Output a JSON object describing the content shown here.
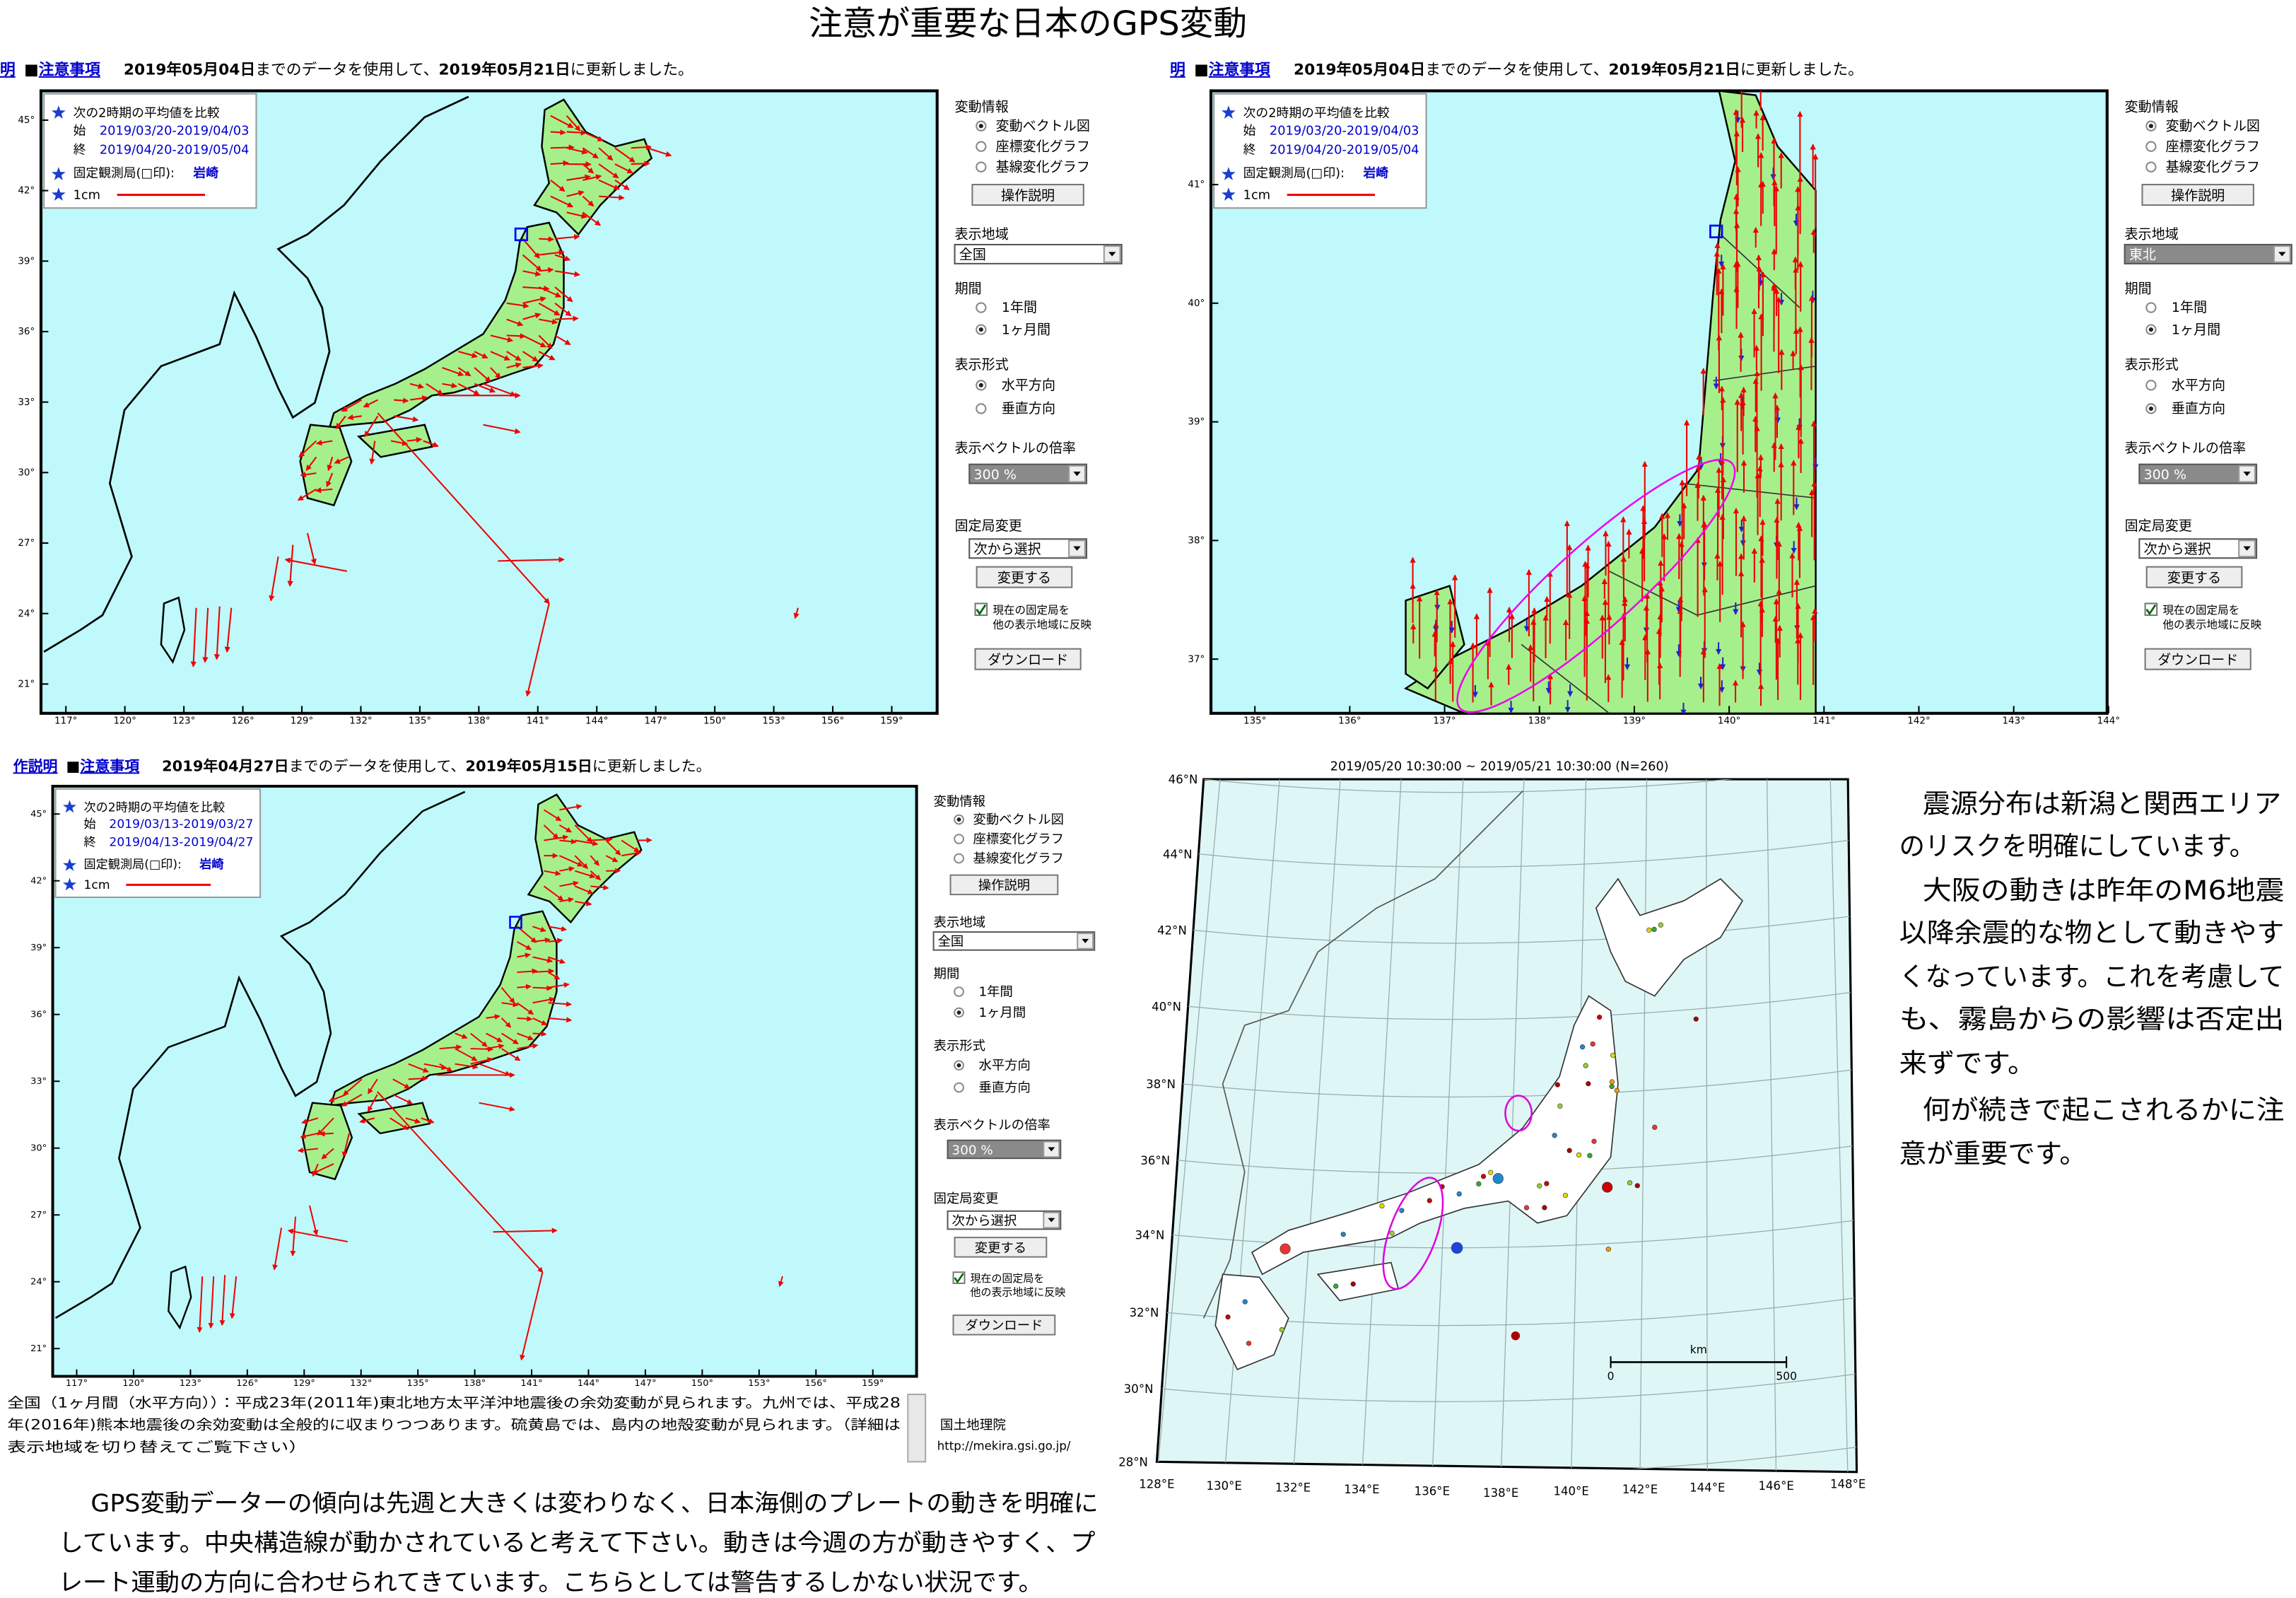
{
  "title": "注意が重要な日本のGPS変動",
  "panels": [
    {
      "header": {
        "nav": "明",
        "bullet": "■",
        "link": "注意事項",
        "data_date": "2019年05月04日",
        "middle": "までのデータを使用して、",
        "update_date": "2019年05月21日",
        "tail": "に更新しました。"
      },
      "legend": {
        "compare": "次の2時期の平均値を比較",
        "start_label": "始",
        "start": "2019/03/20-2019/04/03",
        "end_label": "終",
        "end": "2019/04/20-2019/05/04",
        "fixed": "固定観測局(□印):",
        "station": "岩崎",
        "scale": "1cm"
      },
      "lat_ticks": [
        "45°",
        "42°",
        "39°",
        "36°",
        "33°",
        "30°",
        "27°",
        "24°",
        "21°"
      ],
      "lon_ticks": [
        "117°",
        "120°",
        "123°",
        "126°",
        "129°",
        "132°",
        "135°",
        "138°",
        "141°",
        "144°",
        "147°",
        "150°",
        "153°",
        "156°",
        "159°"
      ],
      "controls": {
        "info_title": "変動情報",
        "info_options": [
          "変動ベクトル図",
          "座標変化グラフ",
          "基線変化グラフ"
        ],
        "info_selected": 0,
        "help_button": "操作説明",
        "region_title": "表示地域",
        "region": "全国",
        "period_title": "期間",
        "period_options": [
          "1年間",
          "1ヶ月間"
        ],
        "period_selected": 1,
        "format_title": "表示形式",
        "format_options": [
          "水平方向",
          "垂直方向"
        ],
        "format_selected": 0,
        "scale_title": "表示ベクトルの倍率",
        "scale": "300 %",
        "station_title": "固定局変更",
        "station_select": "次から選択",
        "change_button": "変更する",
        "reflect": [
          "現在の固定局を",
          "他の表示地域に反映"
        ],
        "download_button": "ダウンロード"
      }
    },
    {
      "header": {
        "nav": "明",
        "bullet": "■",
        "link": "注意事項",
        "data_date": "2019年05月04日",
        "middle": "までのデータを使用して、",
        "update_date": "2019年05月21日",
        "tail": "に更新しました。"
      },
      "legend": {
        "compare": "次の2時期の平均値を比較",
        "start_label": "始",
        "start": "2019/03/20-2019/04/03",
        "end_label": "終",
        "end": "2019/04/20-2019/05/04",
        "fixed": "固定観測局(□印):",
        "station": "岩崎",
        "scale": "1cm"
      },
      "lat_ticks": [
        "41°",
        "40°",
        "39°",
        "38°",
        "37°"
      ],
      "lon_ticks": [
        "135°",
        "136°",
        "137°",
        "138°",
        "139°",
        "140°",
        "141°",
        "142°",
        "143°",
        "144°"
      ],
      "controls": {
        "info_title": "変動情報",
        "info_options": [
          "変動ベクトル図",
          "座標変化グラフ",
          "基線変化グラフ"
        ],
        "info_selected": 0,
        "help_button": "操作説明",
        "region_title": "表示地域",
        "region": "東北",
        "period_title": "期間",
        "period_options": [
          "1年間",
          "1ヶ月間"
        ],
        "period_selected": 1,
        "format_title": "表示形式",
        "format_options": [
          "水平方向",
          "垂直方向"
        ],
        "format_selected": 1,
        "scale_title": "表示ベクトルの倍率",
        "scale": "300 %",
        "station_title": "固定局変更",
        "station_select": "次から選択",
        "change_button": "変更する",
        "reflect": [
          "現在の固定局を",
          "他の表示地域に反映"
        ],
        "download_button": "ダウンロード"
      }
    },
    {
      "header": {
        "nav": "作説明",
        "bullet": "■",
        "link": "注意事項",
        "data_date": "2019年04月27日",
        "middle": "までのデータを使用して、",
        "update_date": "2019年05月15日",
        "tail": "に更新しました。"
      },
      "legend": {
        "compare": "次の2時期の平均値を比較",
        "start_label": "始",
        "start": "2019/03/13-2019/03/27",
        "end_label": "終",
        "end": "2019/04/13-2019/04/27",
        "fixed": "固定観測局(□印):",
        "station": "岩崎",
        "scale": "1cm"
      },
      "lat_ticks": [
        "45°",
        "42°",
        "39°",
        "36°",
        "33°",
        "30°",
        "27°",
        "24°",
        "21°"
      ],
      "lon_ticks": [
        "117°",
        "120°",
        "123°",
        "126°",
        "129°",
        "132°",
        "135°",
        "138°",
        "141°",
        "144°",
        "147°",
        "150°",
        "153°",
        "156°",
        "159°"
      ],
      "controls": {
        "info_title": "変動情報",
        "info_options": [
          "変動ベクトル図",
          "座標変化グラフ",
          "基線変化グラフ"
        ],
        "info_selected": 0,
        "help_button": "操作説明",
        "region_title": "表示地域",
        "region": "全国",
        "period_title": "期間",
        "period_options": [
          "1年間",
          "1ヶ月間"
        ],
        "period_selected": 1,
        "format_title": "表示形式",
        "format_options": [
          "水平方向",
          "垂直方向"
        ],
        "format_selected": 0,
        "scale_title": "表示ベクトルの倍率",
        "scale": "300 %",
        "station_title": "固定局変更",
        "station_select": "次から選択",
        "change_button": "変更する",
        "reflect": [
          "現在の固定局を",
          "他の表示地域に反映"
        ],
        "download_button": "ダウンロード"
      }
    }
  ],
  "panel3_footer": {
    "lines": [
      "全国（1ヶ月間（水平方向））：平成23年(2011年)東北地方太平洋沖地震後の余効変動が見られます。九州では、平成28",
      "年(2016年)熊本地震後の余効変動は全般的に収まりつつあります。硫黄島では、島内の地殻変動が見られます。（詳細は",
      "表示地域を切り替えてご覧下さい）"
    ],
    "agency": "国土地理院",
    "url": "http://mekira.gsi.go.jp/"
  },
  "seismic_map": {
    "title": "2019/05/20 10:30:00 ~ 2019/05/21 10:30:00 (N=260)",
    "lat_ticks": [
      "46°N",
      "44°N",
      "42°N",
      "40°N",
      "38°N",
      "36°N",
      "34°N",
      "32°N",
      "30°N",
      "28°N"
    ],
    "lon_ticks": [
      "128°E",
      "130°E",
      "132°E",
      "134°E",
      "136°E",
      "138°E",
      "140°E",
      "142°E",
      "144°E",
      "146°E",
      "148°E"
    ],
    "scale_unit": "km",
    "scale_ticks": [
      0,
      500
    ]
  },
  "right_text": [
    "震源分布は新潟と関西エリア",
    "のリスクを明確にしています。",
    "大阪の動きは昨年のM6地震",
    "以降余震的な物として動きやす",
    "くなっています。これを考慮して",
    "も、霧島からの影響は否定出",
    "来ずです。",
    "何が続きで起こされるかに注",
    "意が重要です。"
  ],
  "bottom_text": [
    "GPS変動データーの傾向は先週と大きくは変わりなく、日本海側のプレートの動きを明確に",
    "しています。中央構造線が動かされていると考えて下さい。動きは今週の方が動きやすく、プ",
    "レート運動の方向に合わせられてきています。こちらとしては警告するしかない状況です。"
  ]
}
